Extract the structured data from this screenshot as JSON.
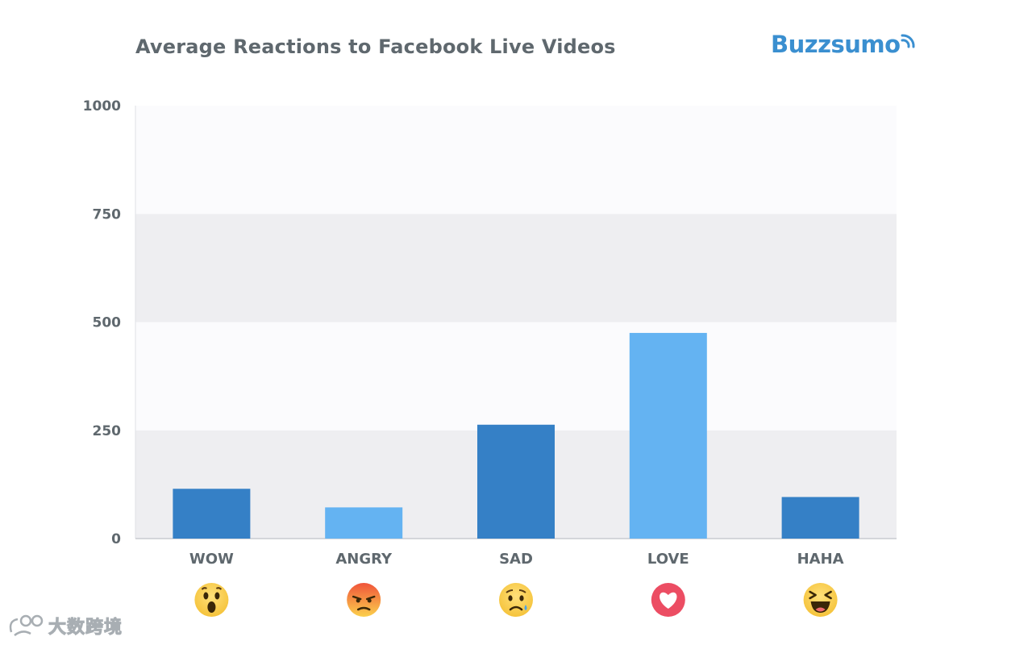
{
  "header": {
    "title": "Average Reactions to Facebook Live Videos",
    "brand": "Buzzsumo"
  },
  "watermark": {
    "text": "大数跨境",
    "icon": "logo-mark-icon"
  },
  "colors": {
    "dark_bar": "#3580c6",
    "light_bar": "#64b3f2",
    "band_light": "#fbfbfd",
    "band_dark": "#eeeef1",
    "text": "#5f686e",
    "brand": "#3a8fd0"
  },
  "chart_data": {
    "type": "bar",
    "title": "Average Reactions to Facebook Live Videos",
    "categories": [
      "WOW",
      "ANGRY",
      "SAD",
      "LOVE",
      "HAHA"
    ],
    "values": [
      115,
      72,
      263,
      475,
      96
    ],
    "bar_colors": [
      "dark",
      "light",
      "dark",
      "light",
      "dark"
    ],
    "category_icons": [
      "wow-emoji-icon",
      "angry-emoji-icon",
      "sad-emoji-icon",
      "love-heart-icon",
      "haha-emoji-icon"
    ],
    "ylim": [
      0,
      1000
    ],
    "yticks": [
      0,
      250,
      500,
      750,
      1000
    ],
    "xlabel": "",
    "ylabel": "",
    "grid": "alternating horizontal bands",
    "legend": "none"
  }
}
